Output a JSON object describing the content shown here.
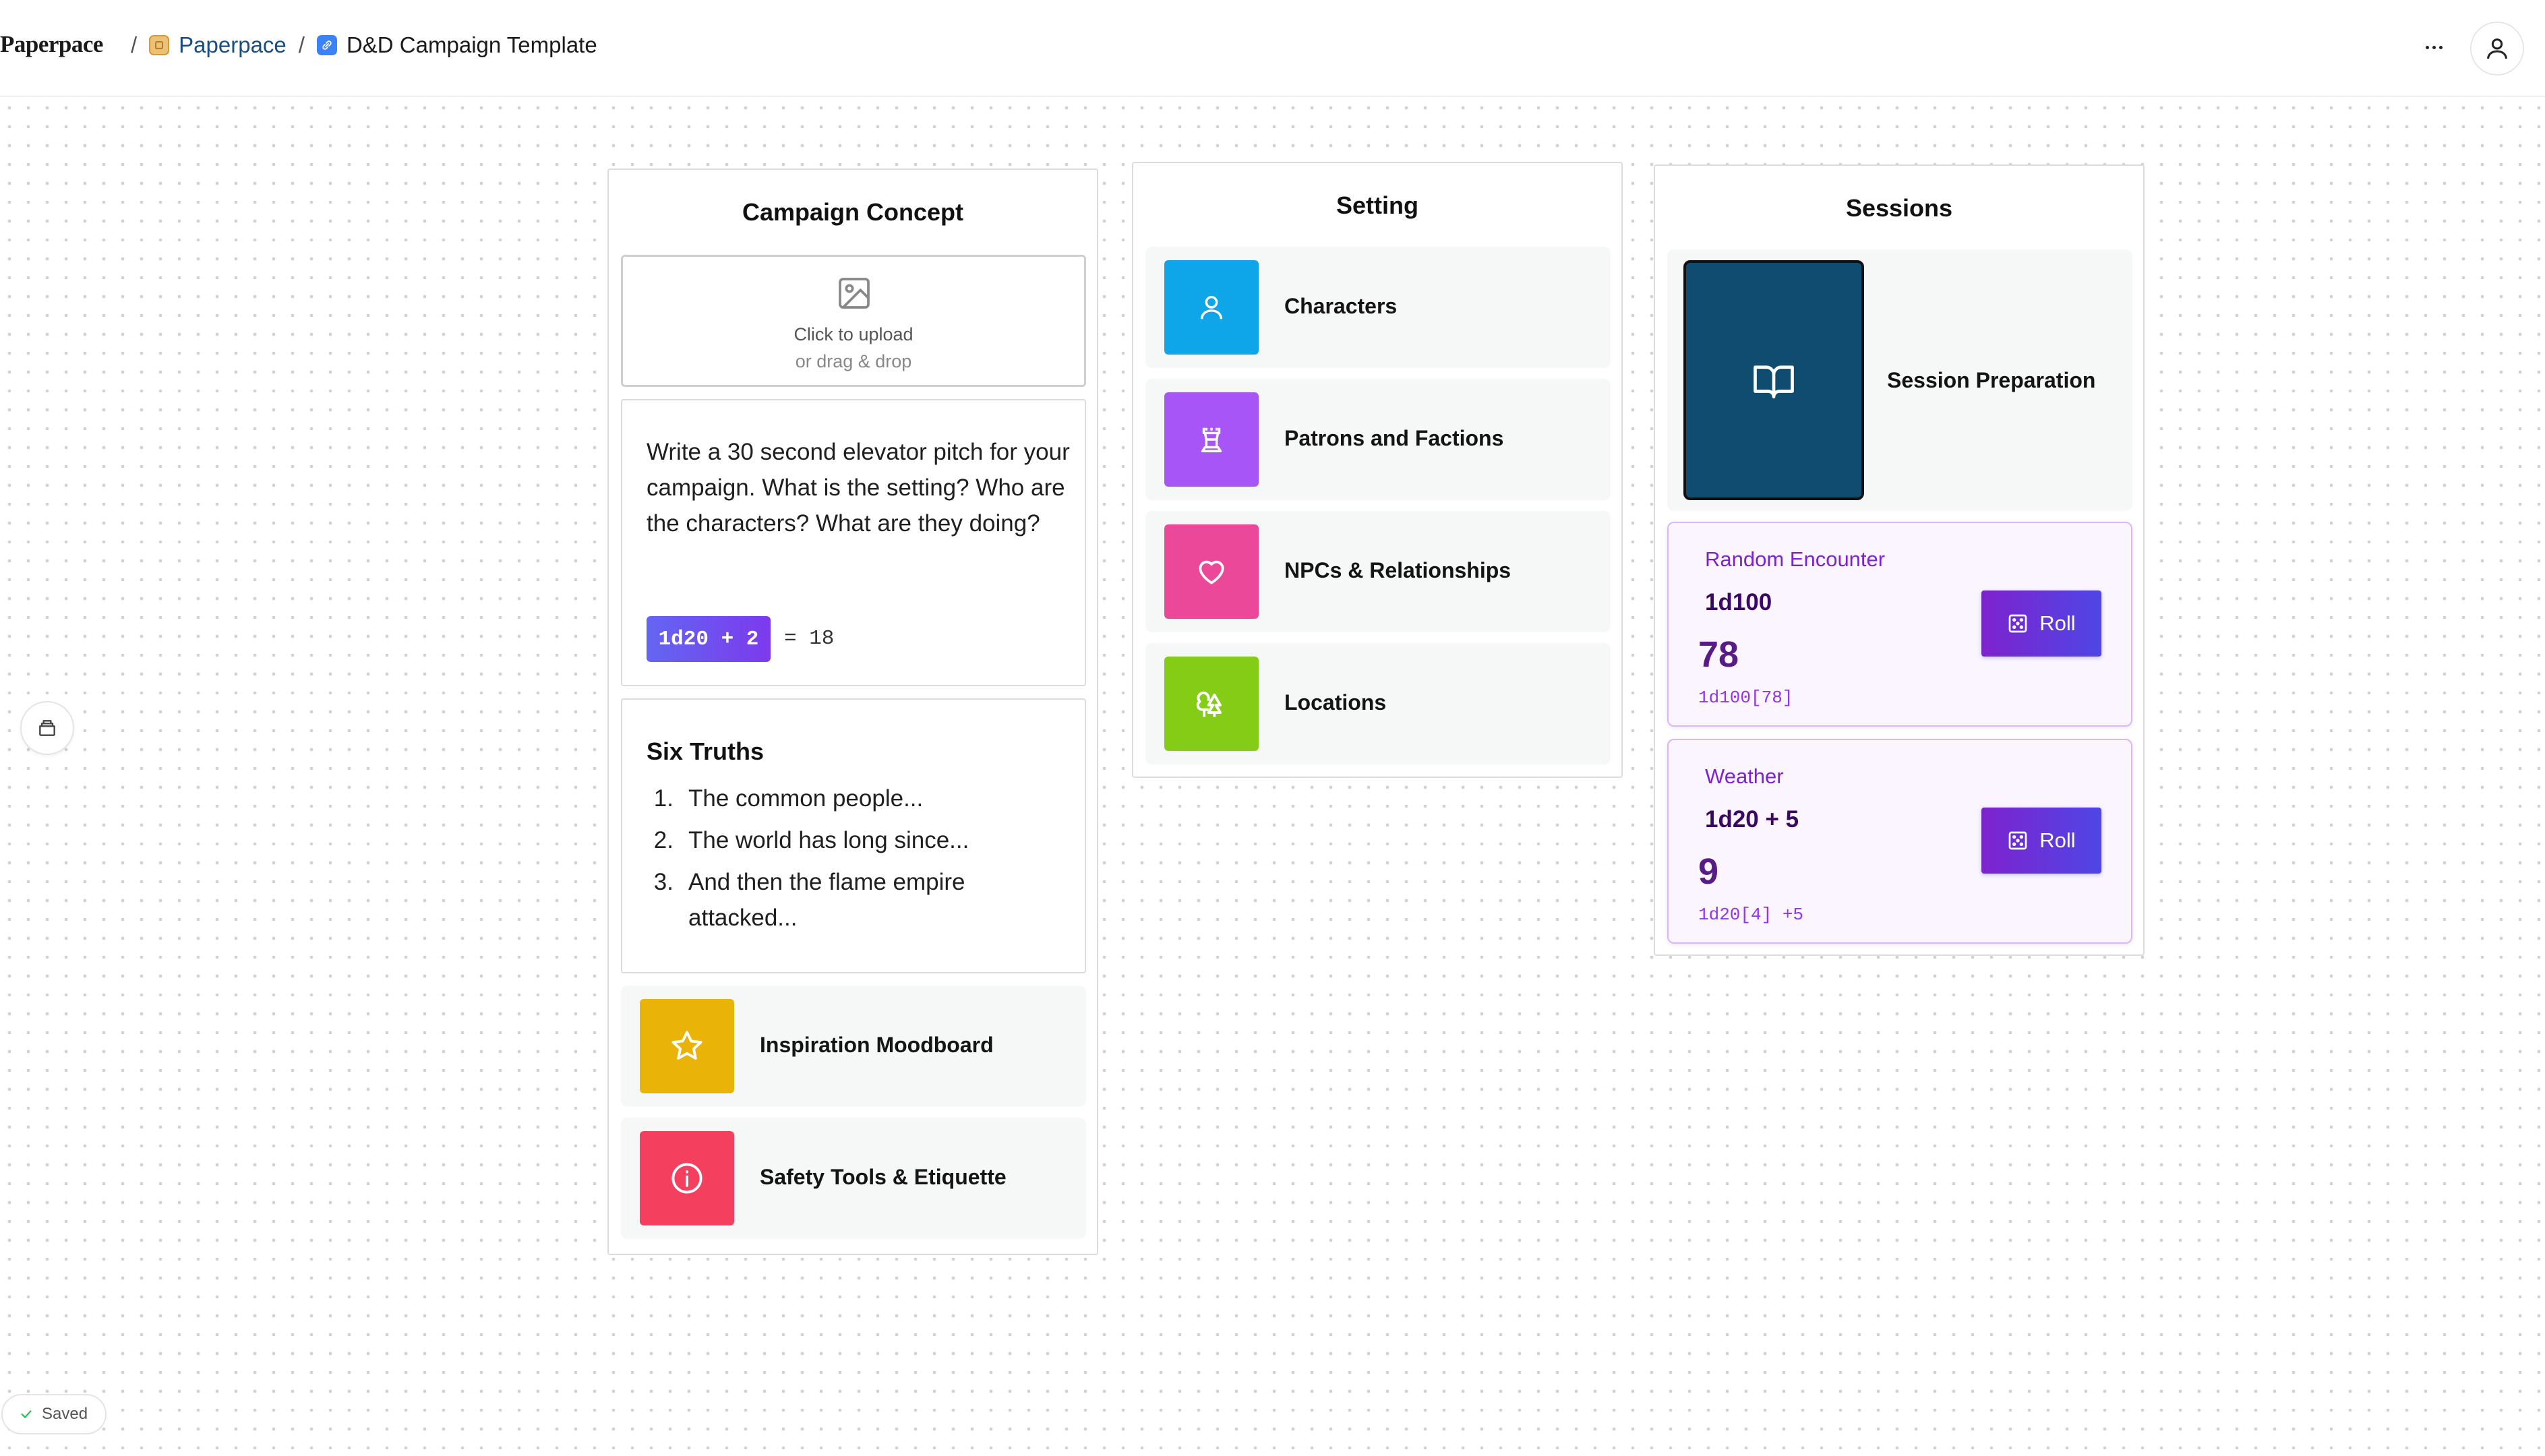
{
  "header": {
    "brand": "Paperpace",
    "breadcrumb": [
      {
        "label": "Paperpace",
        "icon": "workspace-icon"
      },
      {
        "label": "D&D Campaign Template",
        "icon": "page-link-icon"
      }
    ],
    "more_icon": "more-horizontal-icon",
    "user_icon": "user-icon"
  },
  "campaign_concept": {
    "title": "Campaign Concept",
    "upload": {
      "label": "Click to upload",
      "sub": "or drag & drop",
      "icon": "image-icon"
    },
    "pitch": {
      "text": "Write a 30 second elevator pitch for your campaign. What is the setting? Who are the characters? What are they doing?",
      "dice_expr": "1d20 + 2",
      "dice_result": "= 18"
    },
    "six_truths": {
      "title": "Six Truths",
      "items": [
        {
          "num": "1.",
          "text": "The common people..."
        },
        {
          "num": "2.",
          "text": "The world has long since..."
        },
        {
          "num": "3.",
          "text": "And then the flame empire attacked..."
        }
      ]
    },
    "links": [
      {
        "label": "Inspiration Moodboard",
        "icon": "star-icon",
        "color": "#eab308"
      },
      {
        "label": "Safety Tools & Etiquette",
        "icon": "info-icon",
        "color": "#f43f5e"
      }
    ]
  },
  "setting": {
    "title": "Setting",
    "links": [
      {
        "label": "Characters",
        "icon": "user-icon",
        "color": "#0ea5e9"
      },
      {
        "label": "Patrons and Factions",
        "icon": "castle-icon",
        "color": "#a855f7"
      },
      {
        "label": "NPCs & Relationships",
        "icon": "heart-icon",
        "color": "#ec4899"
      },
      {
        "label": "Locations",
        "icon": "trees-icon",
        "color": "#84cc16"
      }
    ]
  },
  "sessions": {
    "title": "Sessions",
    "prep": {
      "label": "Session Preparation",
      "icon": "book-open-icon",
      "color": "#0f4c70"
    },
    "dice": [
      {
        "name": "Random Encounter",
        "formula": "1d100",
        "value": "78",
        "detail": "1d100[78]",
        "button": "Roll"
      },
      {
        "name": "Weather",
        "formula": "1d20 + 5",
        "value": "9",
        "detail": "1d20[4] +5",
        "button": "Roll"
      }
    ]
  },
  "side_toolbar": {
    "icon": "layers-icon"
  },
  "status": {
    "label": "Saved",
    "icon": "check-icon"
  }
}
